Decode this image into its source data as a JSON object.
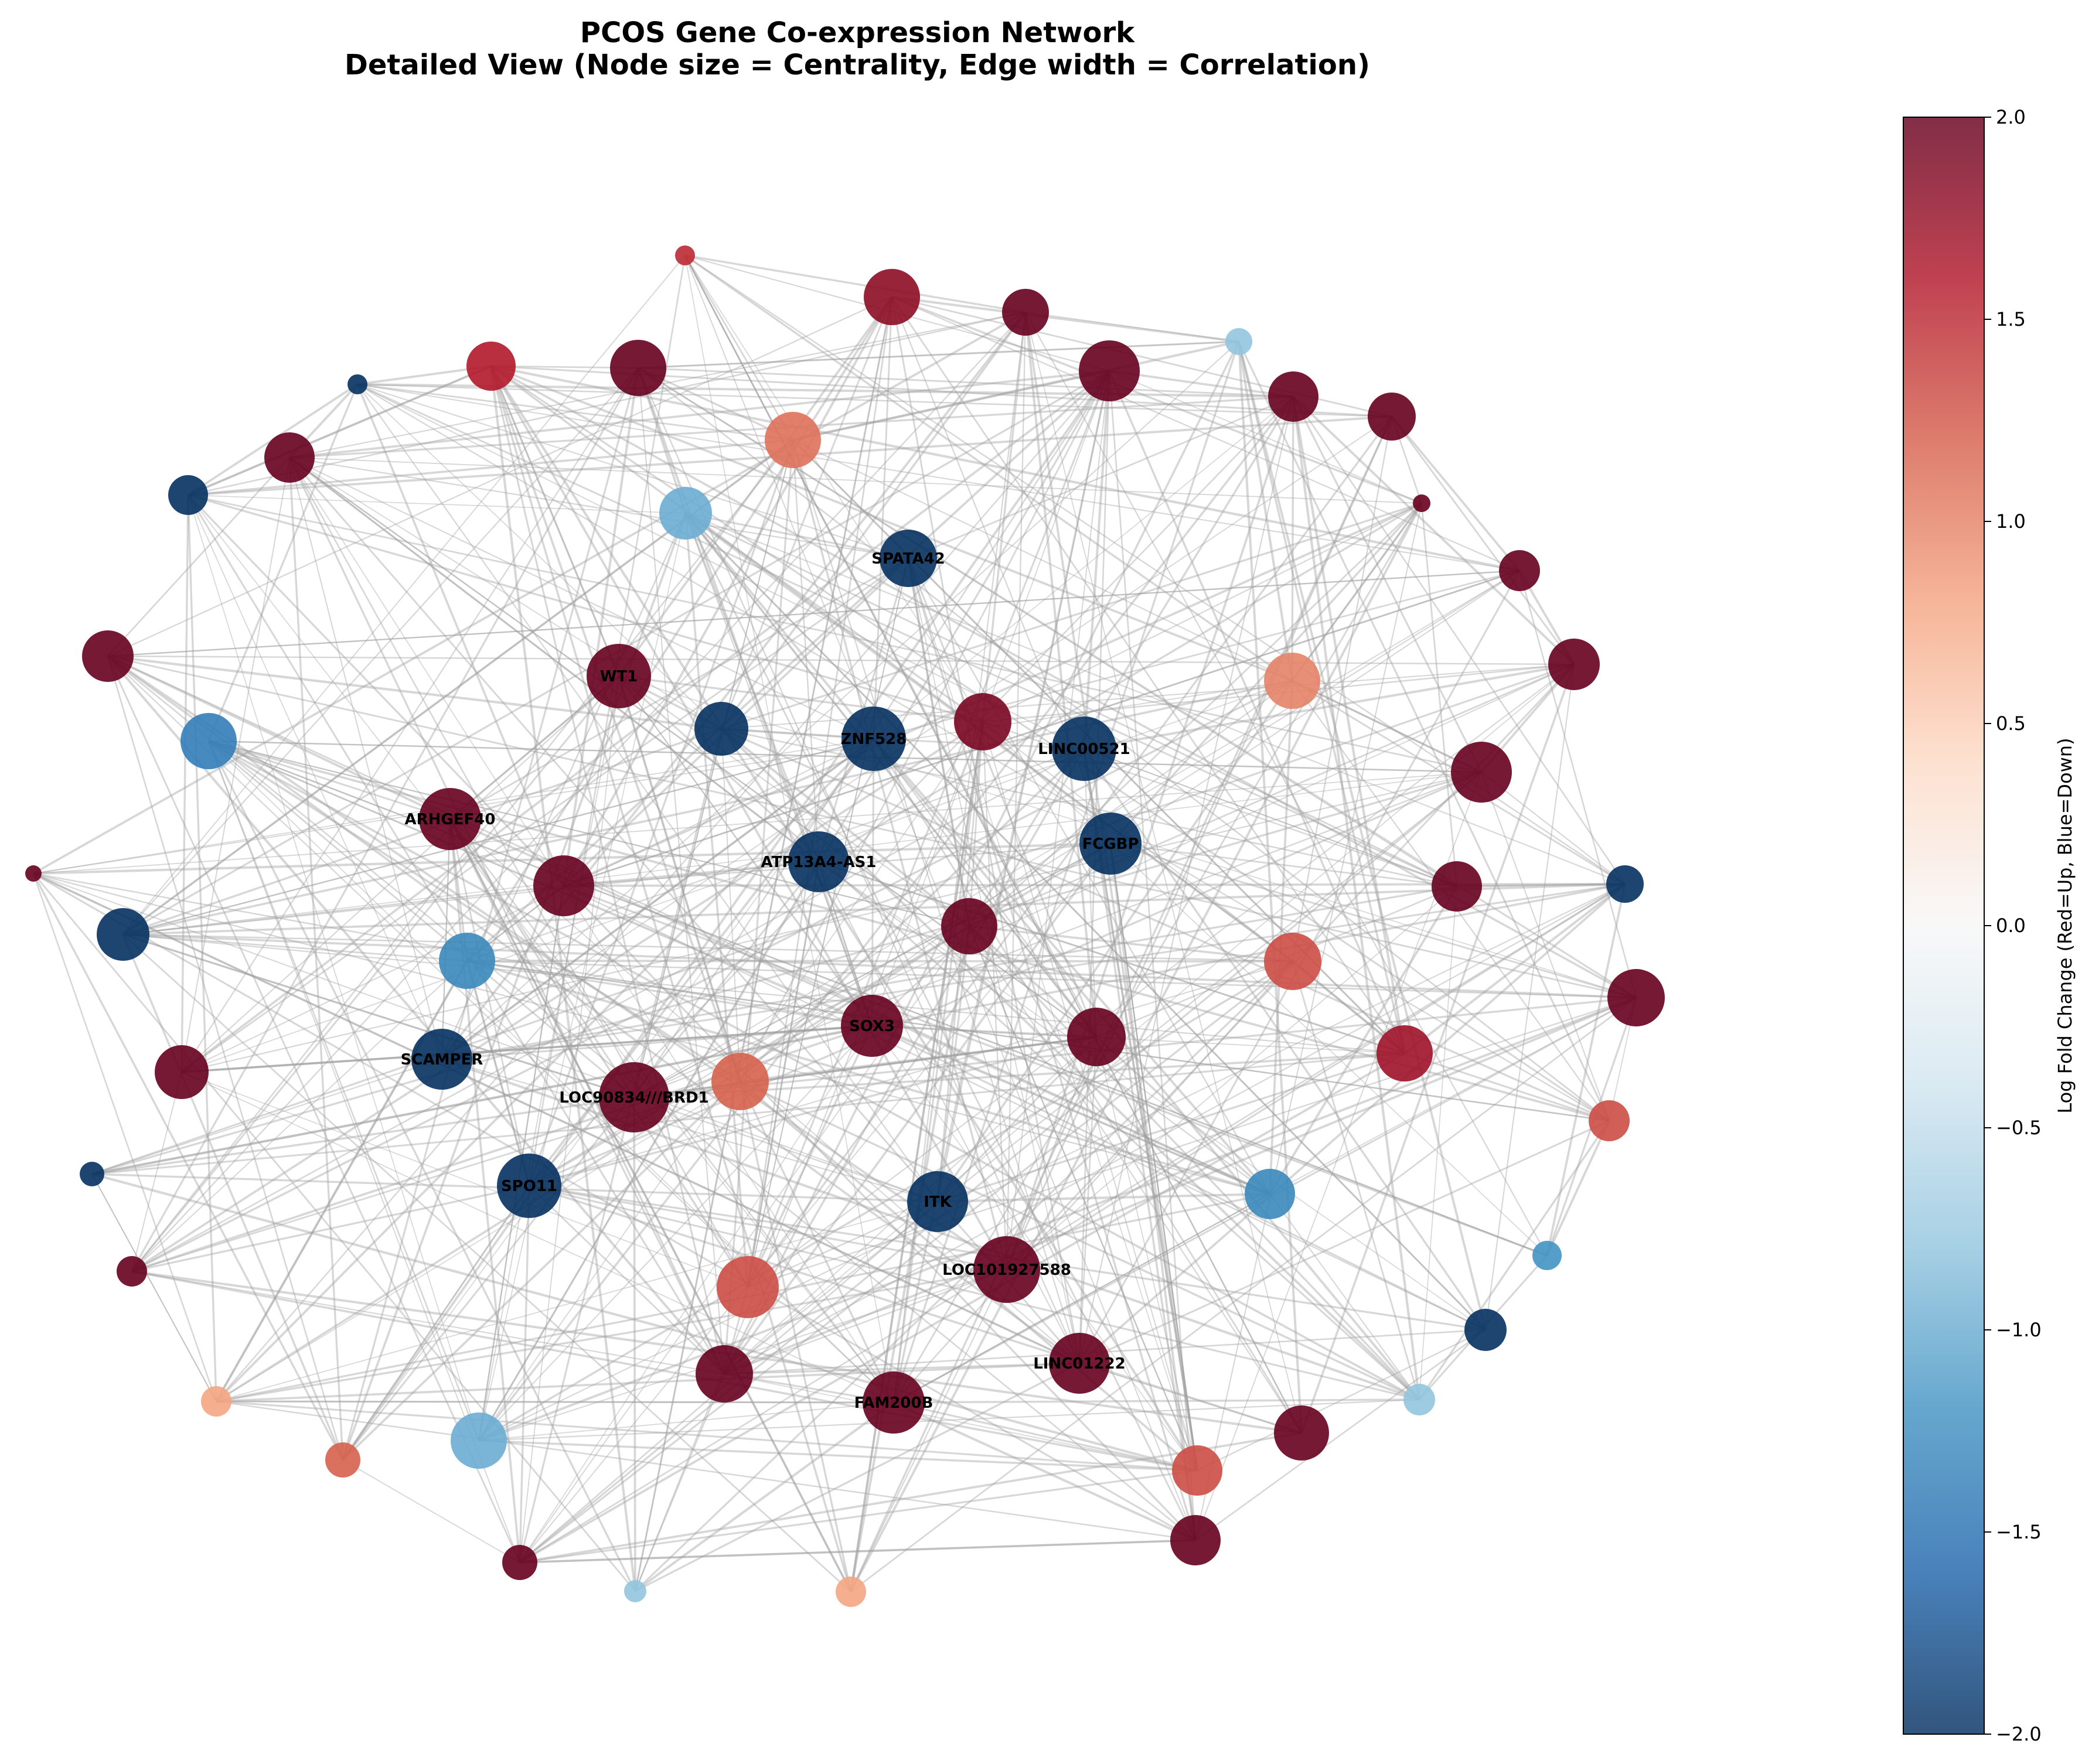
{
  "title": {
    "line1": "PCOS Gene Co-expression Network",
    "line2": "Detailed View (Node size = Centrality, Edge width = Correlation)"
  },
  "colorbar": {
    "label": "Log Fold Change (Red=Up, Blue=Down)",
    "min": -2.0,
    "max": 2.0,
    "ticks": [
      "2.0",
      "1.5",
      "1.0",
      "0.5",
      "0.0",
      "−0.5",
      "−1.0",
      "−1.5",
      "−2.0"
    ],
    "tick_values": [
      2.0,
      1.5,
      1.0,
      0.5,
      0.0,
      -0.5,
      -1.0,
      -1.5,
      -2.0
    ],
    "colormap": [
      "#67001f",
      "#b2182b",
      "#d6604d",
      "#f4a582",
      "#fddbc7",
      "#f7f7f7",
      "#d1e5f0",
      "#92c5de",
      "#4393c3",
      "#2166ac",
      "#053061"
    ],
    "edge_color": "#a0a0a0"
  },
  "chart_data": {
    "type": "network",
    "encoding": {
      "node_size": "Centrality",
      "edge_width": "Correlation",
      "node_color": "Log Fold Change"
    },
    "labeled_nodes": [
      {
        "label": "SPATA42",
        "lfc": -2.0
      },
      {
        "label": "WT1",
        "lfc": 2.0
      },
      {
        "label": "ZNF528",
        "lfc": -2.0
      },
      {
        "label": "LINC00521",
        "lfc": -2.0
      },
      {
        "label": "ARHGEF40",
        "lfc": 2.0
      },
      {
        "label": "ATP13A4-AS1",
        "lfc": -2.0
      },
      {
        "label": "FCGBP",
        "lfc": -2.0
      },
      {
        "label": "SOX3",
        "lfc": 2.0
      },
      {
        "label": "SCAMPER",
        "lfc": -2.0
      },
      {
        "label": "LOC90834///BRD1",
        "lfc": 2.0
      },
      {
        "label": "SPO11",
        "lfc": -2.0
      },
      {
        "label": "ITK",
        "lfc": -2.0
      },
      {
        "label": "LOC101927588",
        "lfc": 2.0
      },
      {
        "label": "LINC01222",
        "lfc": 2.0
      },
      {
        "label": "FAM200B",
        "lfc": 2.0
      }
    ],
    "unlabeled_node_lfc": [
      1.8,
      2.0,
      1.6,
      2.0,
      2.0,
      -0.8,
      -2.0,
      1.5,
      2.0,
      2.0,
      1.1,
      2.0,
      -2.0,
      2.0,
      -1.0,
      2.0,
      2.0,
      2.0,
      1.0,
      -2.0,
      1.9,
      -1.4,
      2.0,
      2.0,
      2.0,
      -2.0,
      -1.3,
      2.0,
      -2.0,
      2.0,
      1.3,
      2.0,
      2.0,
      1.7,
      1.2,
      2.0,
      1.3,
      -1.3,
      -2.0,
      2.0,
      -1.2,
      1.3,
      -2.0,
      2.0,
      2.0,
      -0.8,
      0.8,
      -1.0,
      1.3,
      1.2,
      2.0
    ]
  }
}
